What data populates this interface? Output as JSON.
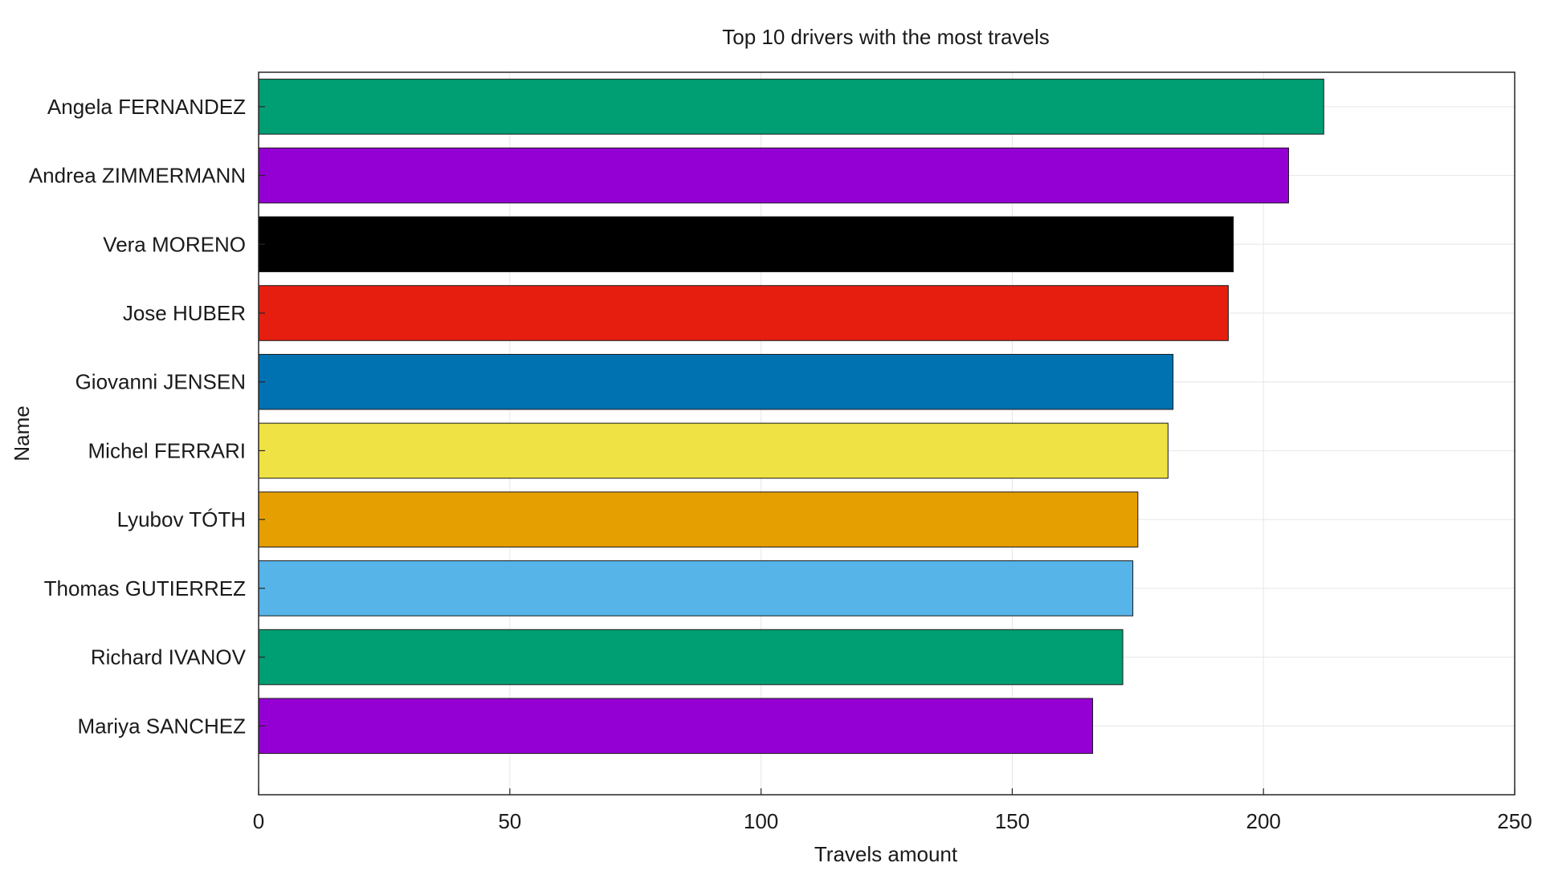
{
  "chart_data": {
    "type": "bar",
    "orientation": "horizontal",
    "title": "Top 10 drivers with the most travels",
    "xlabel": "Travels amount",
    "ylabel": "Name",
    "xlim": [
      0,
      250
    ],
    "xticks": [
      0,
      50,
      100,
      150,
      200,
      250
    ],
    "grid": true,
    "categories": [
      "Angela FERNANDEZ",
      "Andrea ZIMMERMANN",
      "Vera MORENO",
      "Jose HUBER",
      "Giovanni JENSEN",
      "Michel FERRARI",
      "Lyubov TÓTH",
      "Thomas GUTIERREZ",
      "Richard IVANOV",
      "Mariya SANCHEZ"
    ],
    "values": [
      212,
      205,
      194,
      193,
      182,
      181,
      175,
      174,
      172,
      166
    ],
    "colors": [
      "#009E73",
      "#9400D3",
      "#000000",
      "#E51E10",
      "#0072B2",
      "#EEE244",
      "#E69F00",
      "#56B4E9",
      "#009E73",
      "#9400D3"
    ]
  }
}
